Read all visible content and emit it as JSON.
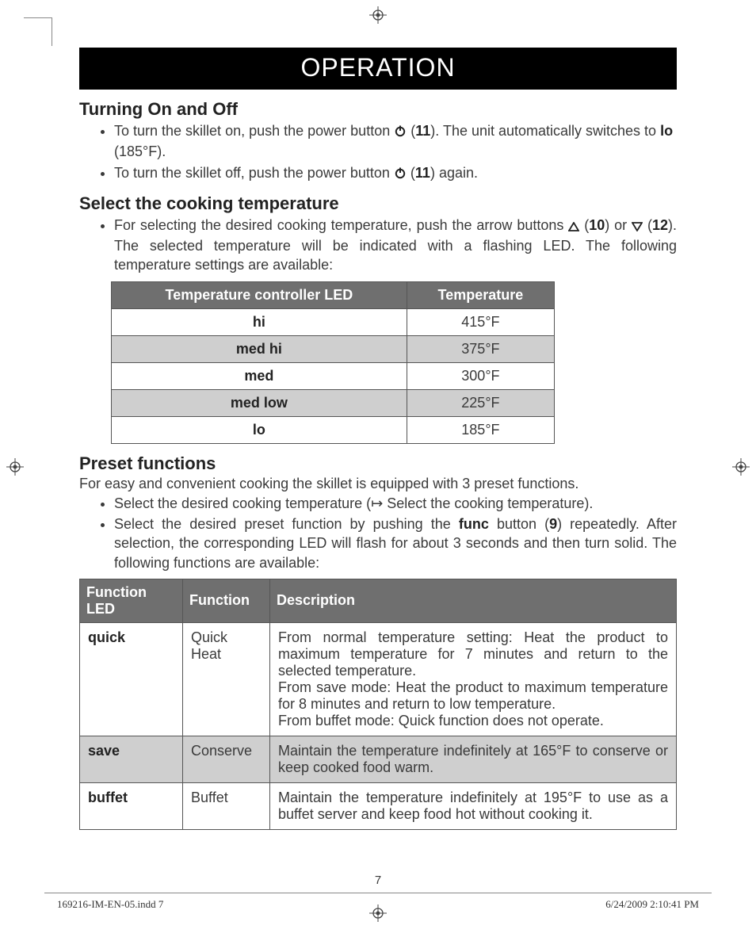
{
  "banner": {
    "title": "OPERATION"
  },
  "sections": {
    "turning": {
      "heading": "Turning On and Off",
      "items": [
        {
          "pre": "To turn the skillet on, push the power button ",
          "icon": "power",
          "ref": "11",
          "post1": ". The unit automatically switches to ",
          "bold": "lo",
          "post2": " (185°F)."
        },
        {
          "pre": "To turn the skillet off, push the power button ",
          "icon": "power",
          "ref": "11",
          "post1": " again."
        }
      ]
    },
    "select": {
      "heading": "Select the cooking temperature",
      "item_pre": "For selecting the desired cooking temperature, push the arrow buttons ",
      "ref_up": "10",
      "item_mid": " or ",
      "ref_down": "12",
      "item_post": ". The selected temperature will be indicated with a flashing LED. The following temperature settings are available:"
    },
    "preset": {
      "heading": "Preset functions",
      "intro": "For easy and convenient cooking the skillet is equipped with 3 preset functions.",
      "items": [
        {
          "text_pre": "Select the desired cooking temperature (",
          "arrow": "↦",
          "text_post": " Select the cooking temperature)."
        },
        {
          "text_pre": "Select the desired preset function by pushing the ",
          "bold": "func",
          "text_mid": " button (",
          "ref": "9",
          "text_post": ") repeatedly. After selection, the corresponding LED will flash for about 3 seconds and then turn solid. The following functions are available:"
        }
      ]
    }
  },
  "temp_table": {
    "columns": [
      "Temperature controller LED",
      "Temperature"
    ],
    "rows": [
      {
        "led": "hi",
        "temp": "415°F",
        "shade": false
      },
      {
        "led": "med hi",
        "temp": "375°F",
        "shade": true
      },
      {
        "led": "med",
        "temp": "300°F",
        "shade": false
      },
      {
        "led": "med low",
        "temp": "225°F",
        "shade": true
      },
      {
        "led": "lo",
        "temp": "185°F",
        "shade": false
      }
    ],
    "colors": {
      "header_bg": "#6f6f6f",
      "header_fg": "#ffffff",
      "border": "#555555",
      "shade_bg": "#cfcfcf"
    }
  },
  "func_table": {
    "columns": [
      "Function LED",
      "Function",
      "Description"
    ],
    "rows": [
      {
        "led": "quick",
        "fn": "Quick Heat",
        "desc": "From normal temperature setting: Heat the product to maximum temperature for 7 minutes and return to the selected temperature.\nFrom save mode: Heat the product to maximum temperature for 8 minutes and return to low temperature.\nFrom buffet mode: Quick function does not operate.",
        "shade": false
      },
      {
        "led": "save",
        "fn": "Conserve",
        "desc": "Maintain the temperature indefinitely at 165°F to conserve or keep cooked food warm.",
        "shade": true
      },
      {
        "led": "buffet",
        "fn": "Buffet",
        "desc": "Maintain the temperature indefinitely at 195°F to use as a buffet server and keep food hot without cooking it.",
        "shade": false
      }
    ],
    "colors": {
      "header_bg": "#6f6f6f",
      "header_fg": "#ffffff",
      "border": "#555555",
      "shade_bg": "#cfcfcf"
    }
  },
  "footer": {
    "page_number": "7",
    "left": "169216-IM-EN-05.indd   7",
    "right": "6/24/2009   2:10:41 PM"
  }
}
